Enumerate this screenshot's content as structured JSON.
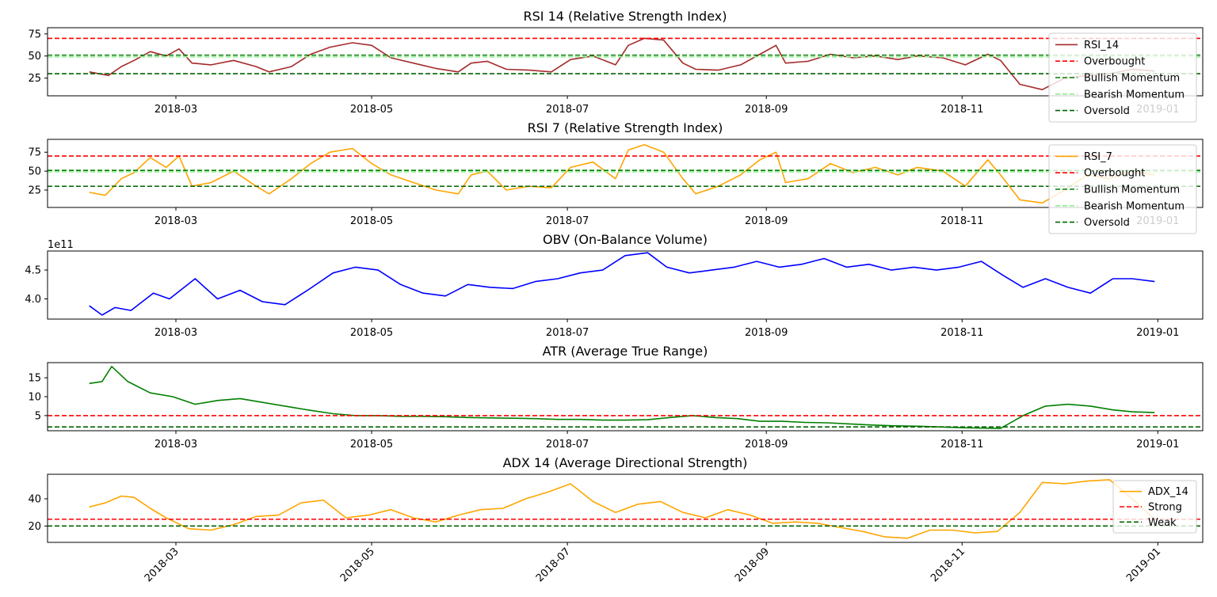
{
  "chart_data": [
    {
      "type": "line",
      "title": "RSI 14 (Relative Strength Index)",
      "xlim": [
        "2018-01-20",
        "2019-01-15"
      ],
      "ylim": [
        5,
        82
      ],
      "yticks": [
        25,
        50,
        75
      ],
      "xticks": [
        "2018-03",
        "2018-05",
        "2018-07",
        "2018-09",
        "2018-11",
        "2019-01"
      ],
      "grid": false,
      "legend_position": "right",
      "series": [
        {
          "name": "RSI_14",
          "color": "#a52a2a",
          "style": "solid",
          "x": [
            "2018-02-02",
            "2018-02-08",
            "2018-02-12",
            "2018-02-16",
            "2018-02-21",
            "2018-02-26",
            "2018-03-02",
            "2018-03-06",
            "2018-03-12",
            "2018-03-19",
            "2018-03-26",
            "2018-03-30",
            "2018-04-06",
            "2018-04-12",
            "2018-04-18",
            "2018-04-25",
            "2018-05-01",
            "2018-05-07",
            "2018-05-14",
            "2018-05-21",
            "2018-05-28",
            "2018-06-01",
            "2018-06-06",
            "2018-06-12",
            "2018-06-19",
            "2018-06-26",
            "2018-07-02",
            "2018-07-09",
            "2018-07-16",
            "2018-07-20",
            "2018-07-25",
            "2018-07-31",
            "2018-08-06",
            "2018-08-10",
            "2018-08-17",
            "2018-08-24",
            "2018-08-30",
            "2018-09-04",
            "2018-09-07",
            "2018-09-14",
            "2018-09-21",
            "2018-09-28",
            "2018-10-05",
            "2018-10-12",
            "2018-10-18",
            "2018-10-26",
            "2018-11-02",
            "2018-11-09",
            "2018-11-13",
            "2018-11-19",
            "2018-11-26",
            "2018-12-03",
            "2018-12-10",
            "2018-12-17",
            "2018-12-24",
            "2018-12-31"
          ],
          "y": [
            32,
            28,
            38,
            45,
            55,
            50,
            58,
            42,
            40,
            45,
            38,
            32,
            38,
            52,
            60,
            65,
            62,
            48,
            42,
            36,
            32,
            42,
            44,
            35,
            34,
            32,
            46,
            50,
            40,
            62,
            70,
            68,
            42,
            35,
            34,
            40,
            52,
            62,
            42,
            44,
            52,
            48,
            50,
            46,
            50,
            48,
            40,
            52,
            45,
            18,
            12,
            25,
            28,
            30,
            35,
            33
          ]
        },
        {
          "name": "Overbought",
          "color": "#ff0000",
          "style": "dashed",
          "value": 70
        },
        {
          "name": "Bullish Momentum",
          "color": "#008000",
          "style": "dashed",
          "value": 51
        },
        {
          "name": "Bearish Momentum",
          "color": "#90ee90",
          "style": "dashed",
          "value": 49
        },
        {
          "name": "Oversold",
          "color": "#006400",
          "style": "dashed",
          "value": 30
        }
      ]
    },
    {
      "type": "line",
      "title": "RSI 7 (Relative Strength Index)",
      "xlim": [
        "2018-01-20",
        "2019-01-15"
      ],
      "ylim": [
        2,
        92
      ],
      "yticks": [
        25,
        50,
        75
      ],
      "xticks": [
        "2018-03",
        "2018-05",
        "2018-07",
        "2018-09",
        "2018-11",
        "2019-01"
      ],
      "grid": false,
      "legend_position": "right",
      "series": [
        {
          "name": "RSI_7",
          "color": "#ffa500",
          "style": "solid",
          "x": [
            "2018-02-02",
            "2018-02-07",
            "2018-02-12",
            "2018-02-16",
            "2018-02-21",
            "2018-02-26",
            "2018-03-02",
            "2018-03-06",
            "2018-03-12",
            "2018-03-19",
            "2018-03-26",
            "2018-03-30",
            "2018-04-06",
            "2018-04-12",
            "2018-04-18",
            "2018-04-25",
            "2018-05-01",
            "2018-05-07",
            "2018-05-14",
            "2018-05-21",
            "2018-05-28",
            "2018-06-01",
            "2018-06-06",
            "2018-06-12",
            "2018-06-19",
            "2018-06-26",
            "2018-07-02",
            "2018-07-09",
            "2018-07-16",
            "2018-07-20",
            "2018-07-25",
            "2018-07-31",
            "2018-08-06",
            "2018-08-10",
            "2018-08-17",
            "2018-08-24",
            "2018-08-30",
            "2018-09-04",
            "2018-09-07",
            "2018-09-14",
            "2018-09-21",
            "2018-09-28",
            "2018-10-05",
            "2018-10-12",
            "2018-10-18",
            "2018-10-26",
            "2018-11-02",
            "2018-11-09",
            "2018-11-13",
            "2018-11-19",
            "2018-11-26",
            "2018-12-03",
            "2018-12-10",
            "2018-12-17",
            "2018-12-24",
            "2018-12-31"
          ],
          "y": [
            22,
            18,
            40,
            48,
            68,
            55,
            70,
            30,
            35,
            50,
            30,
            20,
            40,
            60,
            75,
            80,
            60,
            45,
            35,
            25,
            20,
            45,
            50,
            25,
            30,
            28,
            55,
            62,
            40,
            78,
            85,
            75,
            40,
            20,
            30,
            45,
            65,
            75,
            35,
            40,
            60,
            48,
            55,
            45,
            55,
            50,
            30,
            65,
            45,
            12,
            8,
            25,
            45,
            40,
            50,
            45
          ]
        },
        {
          "name": "Overbought",
          "color": "#ff0000",
          "style": "dashed",
          "value": 70
        },
        {
          "name": "Bullish Momentum",
          "color": "#008000",
          "style": "dashed",
          "value": 51
        },
        {
          "name": "Bearish Momentum",
          "color": "#90ee90",
          "style": "dashed",
          "value": 49
        },
        {
          "name": "Oversold",
          "color": "#006400",
          "style": "dashed",
          "value": 30
        }
      ]
    },
    {
      "type": "line",
      "title": "OBV (On-Balance Volume)",
      "offset_label": "1e11",
      "xlim": [
        "2018-01-20",
        "2019-01-15"
      ],
      "ylim": [
        3.65,
        4.83
      ],
      "yticks": [
        4.0,
        4.5
      ],
      "ytick_labels": [
        "4.0",
        "4.5"
      ],
      "xticks": [
        "2018-03",
        "2018-05",
        "2018-07",
        "2018-09",
        "2018-11",
        "2019-01"
      ],
      "grid": false,
      "series": [
        {
          "name": "",
          "color": "#0000ff",
          "style": "solid",
          "x": [
            "2018-02-02",
            "2018-02-06",
            "2018-02-10",
            "2018-02-15",
            "2018-02-22",
            "2018-02-27",
            "2018-03-07",
            "2018-03-14",
            "2018-03-21",
            "2018-03-28",
            "2018-04-04",
            "2018-04-11",
            "2018-04-19",
            "2018-04-26",
            "2018-05-03",
            "2018-05-10",
            "2018-05-17",
            "2018-05-24",
            "2018-05-31",
            "2018-06-07",
            "2018-06-14",
            "2018-06-21",
            "2018-06-28",
            "2018-07-05",
            "2018-07-12",
            "2018-07-19",
            "2018-07-26",
            "2018-08-01",
            "2018-08-08",
            "2018-08-15",
            "2018-08-22",
            "2018-08-29",
            "2018-09-05",
            "2018-09-12",
            "2018-09-19",
            "2018-09-26",
            "2018-10-03",
            "2018-10-10",
            "2018-10-17",
            "2018-10-24",
            "2018-10-31",
            "2018-11-07",
            "2018-11-14",
            "2018-11-20",
            "2018-11-27",
            "2018-12-04",
            "2018-12-11",
            "2018-12-18",
            "2018-12-24",
            "2018-12-31"
          ],
          "y": [
            3.88,
            3.72,
            3.85,
            3.8,
            4.1,
            4.0,
            4.35,
            4.0,
            4.15,
            3.95,
            3.9,
            4.15,
            4.45,
            4.55,
            4.5,
            4.25,
            4.1,
            4.05,
            4.25,
            4.2,
            4.18,
            4.3,
            4.35,
            4.45,
            4.5,
            4.75,
            4.8,
            4.55,
            4.45,
            4.5,
            4.55,
            4.65,
            4.55,
            4.6,
            4.7,
            4.55,
            4.6,
            4.5,
            4.55,
            4.5,
            4.55,
            4.65,
            4.4,
            4.2,
            4.35,
            4.2,
            4.1,
            4.35,
            4.35,
            4.3
          ]
        }
      ]
    },
    {
      "type": "line",
      "title": "ATR (Average True Range)",
      "xlim": [
        "2018-01-20",
        "2019-01-15"
      ],
      "ylim": [
        1,
        19
      ],
      "yticks": [
        5,
        10,
        15
      ],
      "xticks": [
        "2018-03",
        "2018-05",
        "2018-07",
        "2018-09",
        "2018-11",
        "2019-01"
      ],
      "grid": false,
      "series": [
        {
          "name": "",
          "color": "#008000",
          "style": "solid",
          "x": [
            "2018-02-02",
            "2018-02-06",
            "2018-02-09",
            "2018-02-14",
            "2018-02-21",
            "2018-02-28",
            "2018-03-07",
            "2018-03-14",
            "2018-03-21",
            "2018-03-28",
            "2018-04-04",
            "2018-04-11",
            "2018-04-19",
            "2018-04-26",
            "2018-05-03",
            "2018-05-10",
            "2018-05-17",
            "2018-05-24",
            "2018-05-31",
            "2018-06-07",
            "2018-06-14",
            "2018-06-21",
            "2018-06-28",
            "2018-07-05",
            "2018-07-12",
            "2018-07-19",
            "2018-07-26",
            "2018-08-02",
            "2018-08-09",
            "2018-08-16",
            "2018-08-23",
            "2018-08-30",
            "2018-09-06",
            "2018-09-13",
            "2018-09-20",
            "2018-09-27",
            "2018-10-04",
            "2018-10-11",
            "2018-10-18",
            "2018-10-25",
            "2018-11-01",
            "2018-11-08",
            "2018-11-13",
            "2018-11-20",
            "2018-11-27",
            "2018-12-04",
            "2018-12-11",
            "2018-12-18",
            "2018-12-24",
            "2018-12-31"
          ],
          "y": [
            13.5,
            14,
            18,
            14,
            11,
            10,
            8,
            9,
            9.5,
            8.5,
            7.5,
            6.5,
            5.5,
            5,
            5,
            4.8,
            4.8,
            4.7,
            4.5,
            4.4,
            4.3,
            4.2,
            4,
            4,
            3.8,
            3.8,
            3.9,
            4.5,
            5,
            4.5,
            4.2,
            3.5,
            3.5,
            3.2,
            3.1,
            2.8,
            2.5,
            2.3,
            2.2,
            2,
            1.8,
            1.7,
            1.6,
            5,
            7.5,
            8,
            7.5,
            6.5,
            6,
            5.8
          ]
        },
        {
          "name": "",
          "color": "#ff0000",
          "style": "dashed",
          "value": 5
        },
        {
          "name": "",
          "color": "#006400",
          "style": "dashed",
          "value": 2
        }
      ]
    },
    {
      "type": "line",
      "title": "ADX 14 (Average Directional Strength)",
      "xlim": [
        "2018-01-20",
        "2019-01-15"
      ],
      "ylim": [
        8,
        58
      ],
      "yticks": [
        20,
        40
      ],
      "xticks": [
        "2018-03",
        "2018-05",
        "2018-07",
        "2018-09",
        "2018-11",
        "2019-01"
      ],
      "grid": false,
      "legend_position": "right",
      "series": [
        {
          "name": "ADX_14",
          "color": "#ffa500",
          "style": "solid",
          "x": [
            "2018-02-02",
            "2018-02-07",
            "2018-02-12",
            "2018-02-16",
            "2018-02-21",
            "2018-02-26",
            "2018-03-05",
            "2018-03-12",
            "2018-03-19",
            "2018-03-26",
            "2018-04-02",
            "2018-04-09",
            "2018-04-16",
            "2018-04-23",
            "2018-04-30",
            "2018-05-07",
            "2018-05-14",
            "2018-05-21",
            "2018-05-28",
            "2018-06-04",
            "2018-06-11",
            "2018-06-18",
            "2018-06-25",
            "2018-07-02",
            "2018-07-09",
            "2018-07-16",
            "2018-07-23",
            "2018-07-30",
            "2018-08-06",
            "2018-08-13",
            "2018-08-20",
            "2018-08-27",
            "2018-09-03",
            "2018-09-10",
            "2018-09-17",
            "2018-09-24",
            "2018-10-01",
            "2018-10-08",
            "2018-10-15",
            "2018-10-22",
            "2018-10-29",
            "2018-11-05",
            "2018-11-12",
            "2018-11-19",
            "2018-11-26",
            "2018-12-03",
            "2018-12-10",
            "2018-12-17",
            "2018-12-24",
            "2018-12-31"
          ],
          "y": [
            34,
            37,
            42,
            41,
            33,
            26,
            18,
            17,
            21,
            27,
            28,
            37,
            39,
            26,
            28,
            32,
            26,
            23,
            28,
            32,
            33,
            40,
            45,
            51,
            38,
            30,
            36,
            38,
            30,
            26,
            32,
            28,
            22,
            23,
            22,
            19,
            16,
            12,
            11,
            17,
            17,
            15,
            16,
            30,
            52,
            51,
            53,
            54,
            40,
            25
          ]
        },
        {
          "name": "Strong",
          "color": "#ff0000",
          "style": "dashed",
          "value": 25
        },
        {
          "name": "Weak",
          "color": "#006400",
          "style": "dashed",
          "value": 20
        }
      ]
    }
  ]
}
